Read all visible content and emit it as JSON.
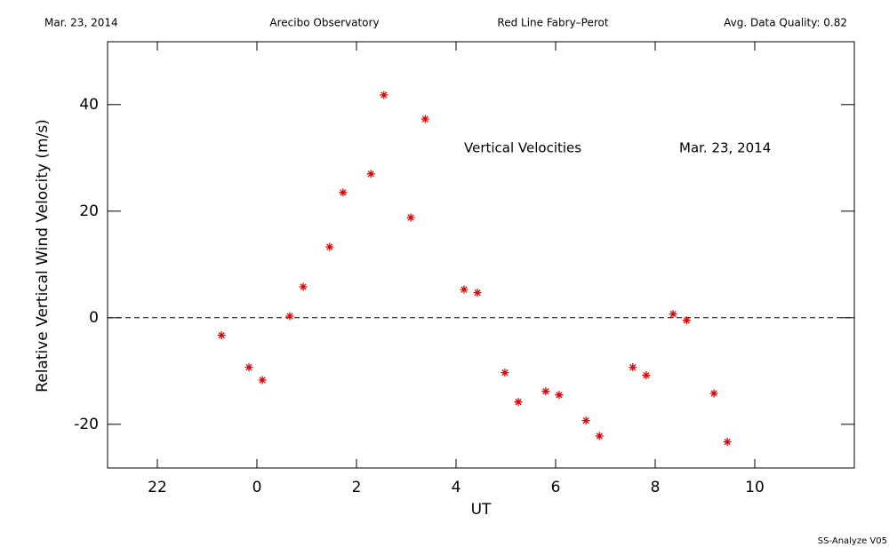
{
  "chart_data": {
    "type": "scatter",
    "header": [
      "Mar. 23, 2014",
      "Arecibo Observatory",
      "Red Line Fabry–Perot",
      "Avg. Data Quality: 0.82"
    ],
    "annotations": [
      "Vertical Velocities",
      "Mar. 23, 2014"
    ],
    "footer": "SS-Analyze V05",
    "x_label": "UT",
    "y_label": "Relative Vertical Wind Velocity (m/s)",
    "xlim": [
      -3,
      12
    ],
    "ylim": [
      -28.2,
      51.8
    ],
    "xticks": [
      {
        "value": -2,
        "label": "22"
      },
      0,
      2,
      4,
      6,
      8,
      10
    ],
    "yticks": [
      -20,
      0,
      20,
      40
    ],
    "reference_line": 0,
    "color": "#e00000",
    "x": [
      -0.71,
      -0.16,
      0.11,
      0.66,
      0.93,
      1.46,
      1.73,
      2.29,
      2.55,
      3.09,
      3.38,
      4.16,
      4.43,
      4.98,
      5.25,
      5.8,
      6.07,
      6.61,
      6.88,
      7.55,
      7.82,
      8.36,
      8.63,
      9.18,
      9.45
    ],
    "values": [
      -3.3,
      -9.3,
      -11.7,
      0.3,
      5.8,
      13.3,
      23.5,
      27,
      41.8,
      18.8,
      37.3,
      5.3,
      4.7,
      -10.3,
      -15.8,
      -13.8,
      -14.5,
      -19.3,
      -22.2,
      -9.3,
      -10.8,
      0.7,
      -0.5,
      -14.2,
      -23.3
    ]
  }
}
